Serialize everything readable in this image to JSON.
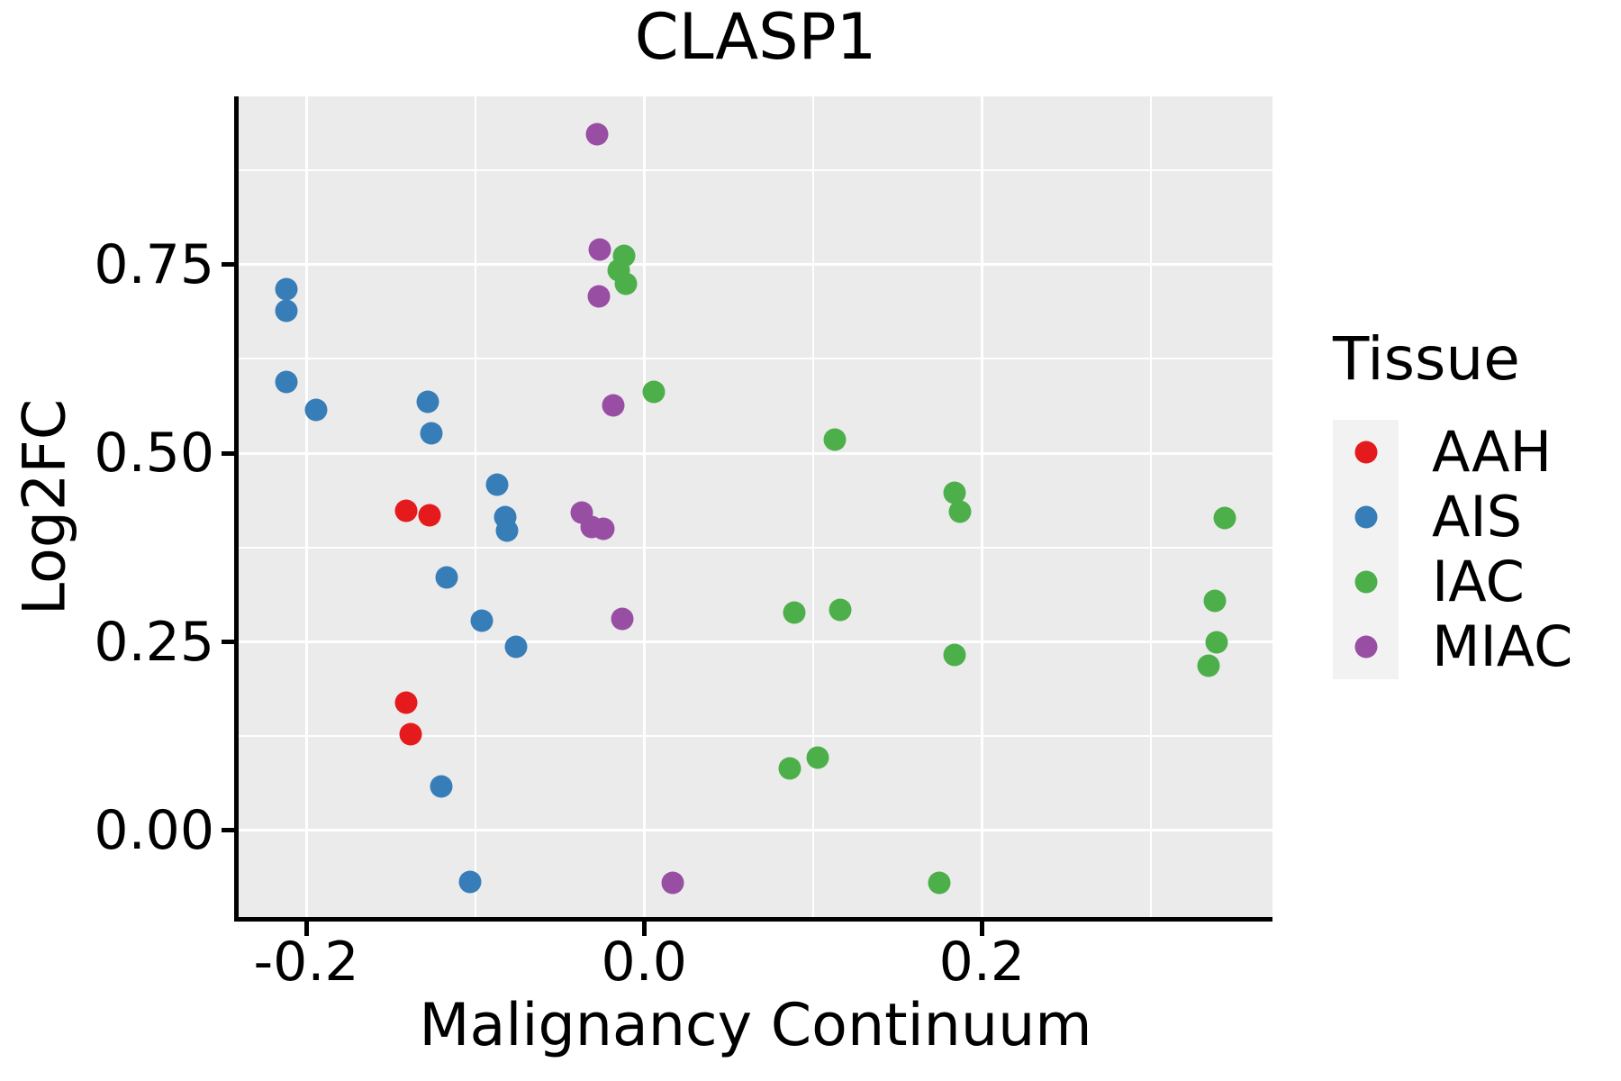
{
  "title": "CLASP1",
  "colors": {
    "background": "#FFFFFF",
    "panel_bg": "#EBEBEB",
    "grid": "#FFFFFF",
    "axis": "#000000",
    "text": "#000000",
    "legend_key_bg": "#F2F2F2"
  },
  "chart_data": {
    "type": "scatter",
    "title": "CLASP1",
    "xlabel": "Malignancy Continuum",
    "ylabel": "Log2FC",
    "grid": true,
    "legend_title": "Tissue",
    "legend_position": "right",
    "xlim": [
      -0.24,
      0.372
    ],
    "ylim": [
      -0.117,
      0.973
    ],
    "x_major_ticks": [
      -0.2,
      0.0,
      0.2
    ],
    "x_tick_labels": [
      "-0.2",
      "0.0",
      "0.2"
    ],
    "x_minor_ticks": [
      -0.1,
      0.1,
      0.3
    ],
    "y_major_ticks": [
      0.0,
      0.25,
      0.5,
      0.75
    ],
    "y_tick_labels": [
      "0.00",
      "0.25",
      "0.50",
      "0.75"
    ],
    "y_minor_ticks": [
      0.125,
      0.375,
      0.625,
      0.875
    ],
    "series": [
      {
        "name": "AAH",
        "color": "#E41A1C",
        "points": [
          [
            -0.141,
            0.424
          ],
          [
            -0.127,
            0.418
          ],
          [
            -0.141,
            0.17
          ],
          [
            -0.138,
            0.128
          ]
        ]
      },
      {
        "name": "AIS",
        "color": "#377EB8",
        "points": [
          [
            -0.212,
            0.717
          ],
          [
            -0.212,
            0.689
          ],
          [
            -0.212,
            0.595
          ],
          [
            -0.194,
            0.557
          ],
          [
            -0.128,
            0.568
          ],
          [
            -0.126,
            0.526
          ],
          [
            -0.087,
            0.458
          ],
          [
            -0.082,
            0.415
          ],
          [
            -0.081,
            0.397
          ],
          [
            -0.117,
            0.335
          ],
          [
            -0.096,
            0.278
          ],
          [
            -0.076,
            0.243
          ],
          [
            -0.12,
            0.058
          ],
          [
            -0.103,
            -0.068
          ]
        ]
      },
      {
        "name": "IAC",
        "color": "#4DAF4A",
        "points": [
          [
            -0.012,
            0.762
          ],
          [
            -0.015,
            0.743
          ],
          [
            -0.011,
            0.725
          ],
          [
            0.006,
            0.582
          ],
          [
            0.113,
            0.518
          ],
          [
            0.184,
            0.448
          ],
          [
            0.187,
            0.423
          ],
          [
            0.344,
            0.414
          ],
          [
            0.338,
            0.305
          ],
          [
            0.339,
            0.25
          ],
          [
            0.334,
            0.219
          ],
          [
            0.184,
            0.233
          ],
          [
            0.089,
            0.289
          ],
          [
            0.116,
            0.293
          ],
          [
            0.086,
            0.082
          ],
          [
            0.103,
            0.097
          ],
          [
            0.175,
            -0.069
          ]
        ]
      },
      {
        "name": "MIAC",
        "color": "#984EA3",
        "points": [
          [
            -0.028,
            0.923
          ],
          [
            -0.026,
            0.77
          ],
          [
            -0.027,
            0.708
          ],
          [
            -0.018,
            0.564
          ],
          [
            -0.037,
            0.422
          ],
          [
            -0.031,
            0.402
          ],
          [
            -0.024,
            0.4
          ],
          [
            -0.013,
            0.28
          ],
          [
            0.017,
            -0.069
          ]
        ]
      }
    ]
  }
}
